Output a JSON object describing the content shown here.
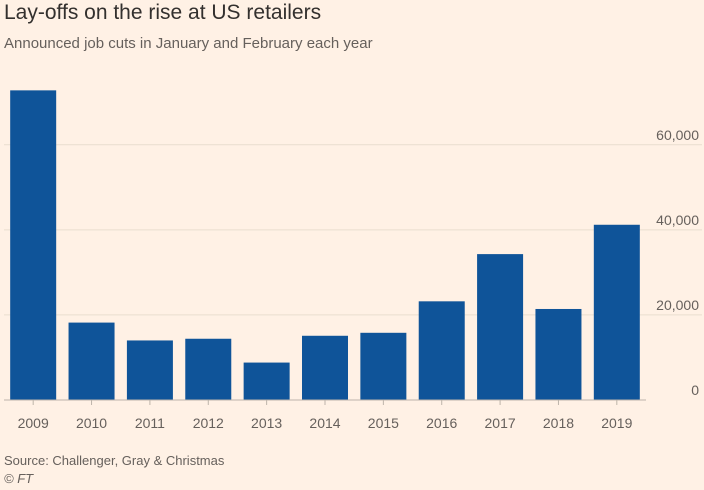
{
  "header": {
    "title": "Lay-offs on the rise at US retailers",
    "subtitle": "Announced job cuts in January and February each year"
  },
  "footer": {
    "source": "Source: Challenger, Gray & Christmas",
    "credit": "© FT"
  },
  "colors": {
    "background": "#fff1e5",
    "bar": "#0f5499",
    "gridline": "#e9decf",
    "baseline": "#bdb4aa",
    "tick_text": "#66605c"
  },
  "chart_data": {
    "type": "bar",
    "title": "Lay-offs on the rise at US retailers",
    "subtitle": "Announced job cuts in January and February each year",
    "categories": [
      "2009",
      "2010",
      "2011",
      "2012",
      "2013",
      "2014",
      "2015",
      "2016",
      "2017",
      "2018",
      "2019"
    ],
    "series": [
      {
        "name": "Announced job cuts",
        "values": [
          72800,
          18200,
          14000,
          14400,
          8800,
          15100,
          15800,
          23200,
          34300,
          21400,
          41200
        ]
      }
    ],
    "xlabel": "",
    "ylabel": "",
    "ylim": [
      0,
      75000
    ],
    "y_ticks": [
      0,
      20000,
      40000,
      60000
    ],
    "y_tick_labels": [
      "0",
      "20,000",
      "40,000",
      "60,000"
    ],
    "y_axis_side": "right",
    "grid": true,
    "legend": "none"
  }
}
